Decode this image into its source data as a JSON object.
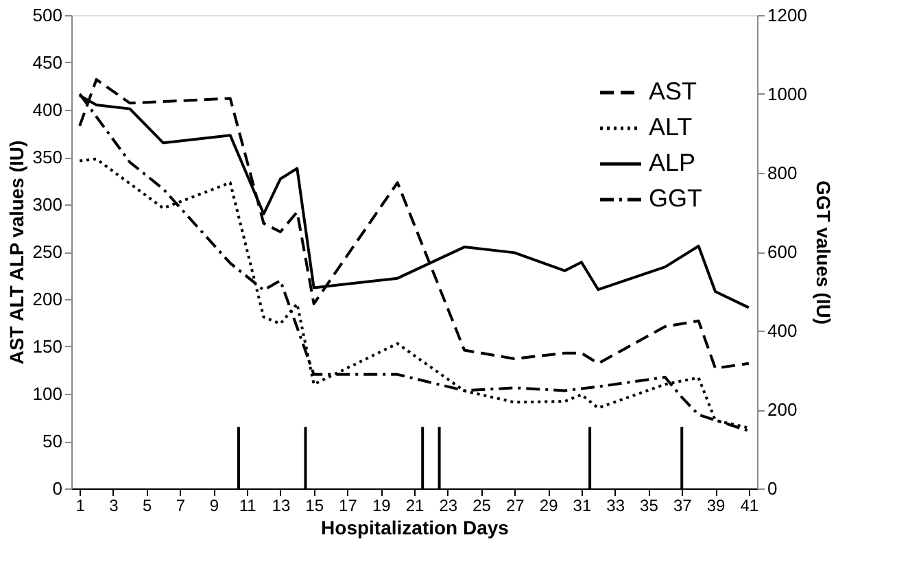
{
  "chart_data": {
    "type": "line",
    "xlabel": "Hospitalization Days",
    "ylabel": "AST ALT ALP values (IU)",
    "y2label": "GGT values (IU)",
    "xlim": [
      0.5,
      41.5
    ],
    "xticks": [
      1,
      3,
      5,
      7,
      9,
      11,
      13,
      15,
      17,
      19,
      21,
      23,
      25,
      27,
      29,
      31,
      33,
      35,
      37,
      39,
      41
    ],
    "ylim": [
      0,
      500
    ],
    "yticks": [
      0,
      50,
      100,
      150,
      200,
      250,
      300,
      350,
      400,
      450,
      500
    ],
    "y2lim": [
      0,
      1200
    ],
    "y2ticks": [
      0,
      200,
      400,
      600,
      800,
      1000,
      1200
    ],
    "grid": false,
    "legend": "top right",
    "marker": "none",
    "series": [
      {
        "name": "AST",
        "color": "#000000",
        "line_style": "dashed",
        "x": [
          1,
          2,
          4,
          10,
          12,
          13,
          14,
          15,
          20,
          24,
          27,
          30,
          31,
          32,
          36,
          38,
          39,
          41
        ],
        "values": [
          383,
          432,
          407,
          412,
          280,
          271,
          292,
          195,
          323,
          146,
          137,
          143,
          143,
          132,
          171,
          177,
          127,
          132
        ]
      },
      {
        "name": "ALT",
        "color": "#000000",
        "line_style": "dotted",
        "x": [
          1,
          2,
          6,
          10,
          12,
          13,
          14,
          15,
          20,
          24,
          27,
          30,
          31,
          32,
          36,
          38,
          39,
          41
        ],
        "values": [
          346,
          348,
          296,
          323,
          181,
          174,
          195,
          110,
          153,
          103,
          91,
          92,
          99,
          85,
          110,
          117,
          72,
          64
        ]
      },
      {
        "name": "ALP",
        "color": "#000000",
        "line_style": "solid",
        "x": [
          1,
          2,
          4,
          6,
          10,
          12,
          13,
          14,
          15,
          20,
          24,
          27,
          30,
          31,
          32,
          36,
          38,
          39,
          41
        ],
        "values": [
          415,
          405,
          401,
          365,
          373,
          290,
          327,
          338,
          212,
          222,
          255,
          249,
          230,
          239,
          210,
          234,
          256,
          208,
          191
        ]
      },
      {
        "name": "GGT",
        "color": "#000000",
        "line_style": "dashdot",
        "axis": "y2",
        "x": [
          1,
          4,
          6,
          10,
          12,
          13,
          15,
          20,
          24,
          27,
          30,
          32,
          36,
          37,
          38,
          39,
          41
        ],
        "values": [
          1000,
          827,
          759,
          571,
          503,
          527,
          289,
          289,
          248,
          255,
          248,
          258,
          282,
          231,
          187,
          173,
          146
        ]
      }
    ],
    "ref_lines": [
      {
        "axis": "x",
        "value": 10.5
      },
      {
        "axis": "x",
        "value": 14.5
      },
      {
        "axis": "x",
        "value": 21.5
      },
      {
        "axis": "x",
        "value": 22.5
      },
      {
        "axis": "x",
        "value": 31.5
      },
      {
        "axis": "x",
        "value": 37
      }
    ]
  }
}
